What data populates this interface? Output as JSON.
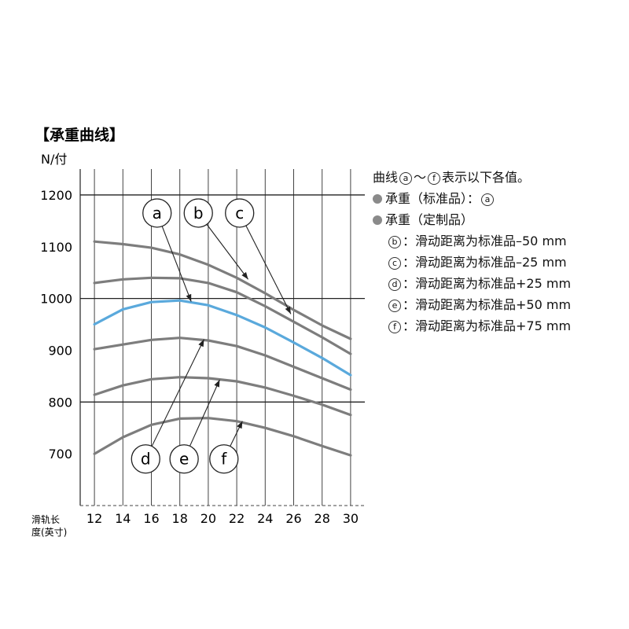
{
  "chart_data": {
    "type": "line",
    "title": "【承重曲线】",
    "ylabel": "N/付",
    "xlabel": "滑轨长\n度(英寸)",
    "x": [
      12,
      14,
      16,
      18,
      20,
      22,
      24,
      26,
      28,
      30
    ],
    "xlim": [
      11,
      31
    ],
    "ylim": [
      600,
      1250
    ],
    "yticks": [
      700,
      800,
      900,
      1000,
      1100,
      1200
    ],
    "major_gridlines_y": [
      800,
      1000,
      1200
    ],
    "series": [
      {
        "name": "b",
        "color": "#7d7d7d",
        "values": [
          1110,
          1105,
          1098,
          1085,
          1065,
          1040,
          1010,
          978,
          948,
          922
        ]
      },
      {
        "name": "c",
        "color": "#7d7d7d",
        "values": [
          1030,
          1037,
          1040,
          1039,
          1030,
          1012,
          985,
          955,
          925,
          893
        ]
      },
      {
        "name": "a",
        "color": "#5aa9dc",
        "values": [
          950,
          979,
          993,
          996,
          987,
          968,
          944,
          915,
          885,
          852
        ]
      },
      {
        "name": "d",
        "color": "#7d7d7d",
        "values": [
          902,
          911,
          920,
          924,
          919,
          908,
          890,
          868,
          846,
          824
        ]
      },
      {
        "name": "e",
        "color": "#7d7d7d",
        "values": [
          814,
          832,
          844,
          848,
          846,
          840,
          828,
          812,
          795,
          775
        ]
      },
      {
        "name": "f",
        "color": "#7d7d7d",
        "values": [
          700,
          732,
          756,
          768,
          769,
          763,
          750,
          734,
          715,
          697
        ]
      }
    ],
    "annotations": [
      {
        "label": "a",
        "x": 16.4,
        "y": 1165,
        "tx": 18.8,
        "ty": 994
      },
      {
        "label": "b",
        "x": 19.3,
        "y": 1165,
        "tx": 22.8,
        "ty": 1037
      },
      {
        "label": "c",
        "x": 22.2,
        "y": 1165,
        "tx": 25.8,
        "ty": 970
      },
      {
        "label": "d",
        "x": 15.6,
        "y": 690,
        "tx": 19.7,
        "ty": 921
      },
      {
        "label": "e",
        "x": 18.3,
        "y": 690,
        "tx": 20.8,
        "ty": 843
      },
      {
        "label": "f",
        "x": 21.1,
        "y": 690,
        "tx": 22.4,
        "ty": 763
      }
    ]
  },
  "legend": {
    "intro_prefix": "曲线",
    "intro_a": "a",
    "intro_sep": "～",
    "intro_f": "f",
    "intro_suffix": "表示以下各值。",
    "standard_label": "承重（标准品）：",
    "standard_ref": "a",
    "custom_label": "承重（定制品）",
    "items": [
      {
        "key": "b",
        "text": "：滑动距离为标准品–50 mm"
      },
      {
        "key": "c",
        "text": "：滑动距离为标准品–25 mm"
      },
      {
        "key": "d",
        "text": "：滑动距离为标准品+25 mm"
      },
      {
        "key": "e",
        "text": "：滑动距离为标准品+50 mm"
      },
      {
        "key": "f",
        "text": "：滑动距离为标准品+75 mm"
      }
    ]
  }
}
